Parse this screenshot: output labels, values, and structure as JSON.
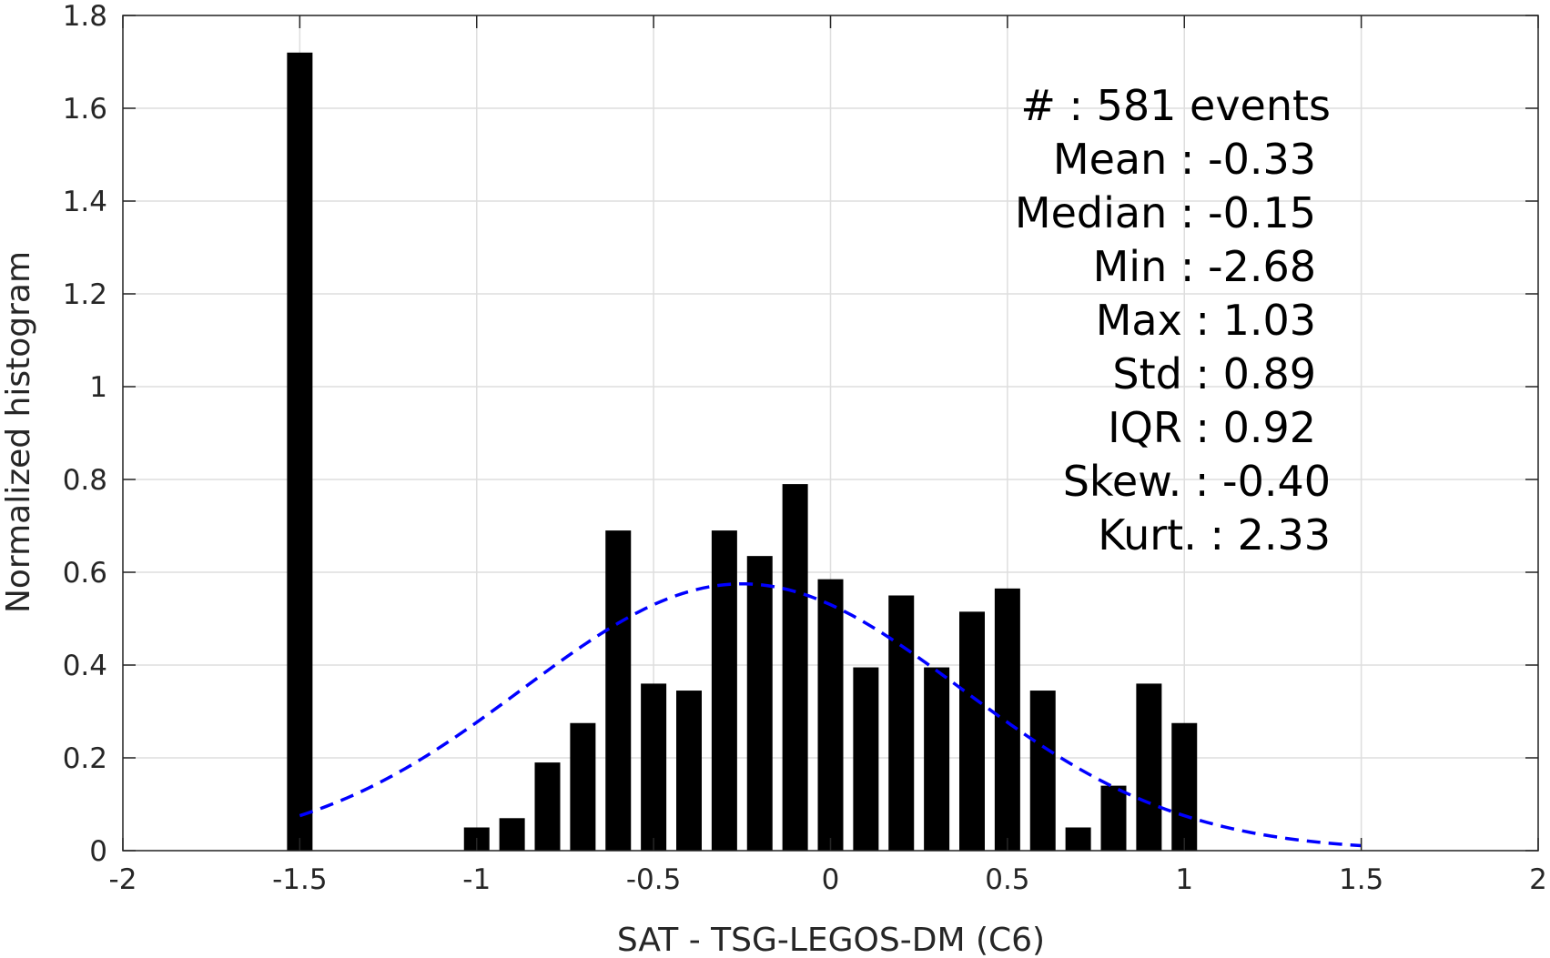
{
  "chart_data": {
    "type": "bar",
    "xlabel": "SAT - TSG-LEGOS-DM (C6)",
    "ylabel": "Normalized histogram",
    "xlim": [
      -2,
      2
    ],
    "ylim": [
      0,
      1.8
    ],
    "grid": true,
    "x_ticks": [
      "-2",
      "-1.5",
      "-1",
      "-0.5",
      "0",
      "0.5",
      "1",
      "1.5",
      "2"
    ],
    "y_ticks": [
      "0",
      "0.2",
      "0.4",
      "0.6",
      "0.8",
      "1",
      "1.2",
      "1.4",
      "1.6",
      "1.8"
    ],
    "bin_width": 0.1,
    "bars": [
      {
        "x": -1.5,
        "value": 1.72
      },
      {
        "x": -1.0,
        "value": 0.05
      },
      {
        "x": -0.9,
        "value": 0.07
      },
      {
        "x": -0.8,
        "value": 0.19
      },
      {
        "x": -0.7,
        "value": 0.275
      },
      {
        "x": -0.6,
        "value": 0.69
      },
      {
        "x": -0.5,
        "value": 0.36
      },
      {
        "x": -0.4,
        "value": 0.345
      },
      {
        "x": -0.3,
        "value": 0.69
      },
      {
        "x": -0.2,
        "value": 0.635
      },
      {
        "x": -0.1,
        "value": 0.79
      },
      {
        "x": 0.0,
        "value": 0.585
      },
      {
        "x": 0.1,
        "value": 0.395
      },
      {
        "x": 0.2,
        "value": 0.55
      },
      {
        "x": 0.3,
        "value": 0.395
      },
      {
        "x": 0.4,
        "value": 0.515
      },
      {
        "x": 0.5,
        "value": 0.565
      },
      {
        "x": 0.6,
        "value": 0.345
      },
      {
        "x": 0.7,
        "value": 0.05
      },
      {
        "x": 0.8,
        "value": 0.14
      },
      {
        "x": 0.9,
        "value": 0.36
      },
      {
        "x": 1.0,
        "value": 0.275
      }
    ],
    "bar_color": "#000000",
    "fit_curve": {
      "style": "dashed",
      "color": "#0000ff",
      "x_range": [
        -1.5,
        1.5
      ],
      "peak_x": -0.25,
      "peak_y": 0.575,
      "sigma": 0.62
    },
    "stats": [
      {
        "label": "#  : 581 events",
        "align": "end-outer"
      },
      {
        "label": "Mean : -0.33",
        "align": "end"
      },
      {
        "label": "Median : -0.15",
        "align": "end"
      },
      {
        "label": "Min : -2.68",
        "align": "end"
      },
      {
        "label": "Max : 1.03",
        "align": "end"
      },
      {
        "label": "Std : 0.89",
        "align": "end"
      },
      {
        "label": "IQR : 0.92",
        "align": "end"
      },
      {
        "label": "Skew. : -0.40",
        "align": "end-outer"
      },
      {
        "label": "Kurt. : 2.33",
        "align": "end-outer"
      }
    ]
  }
}
